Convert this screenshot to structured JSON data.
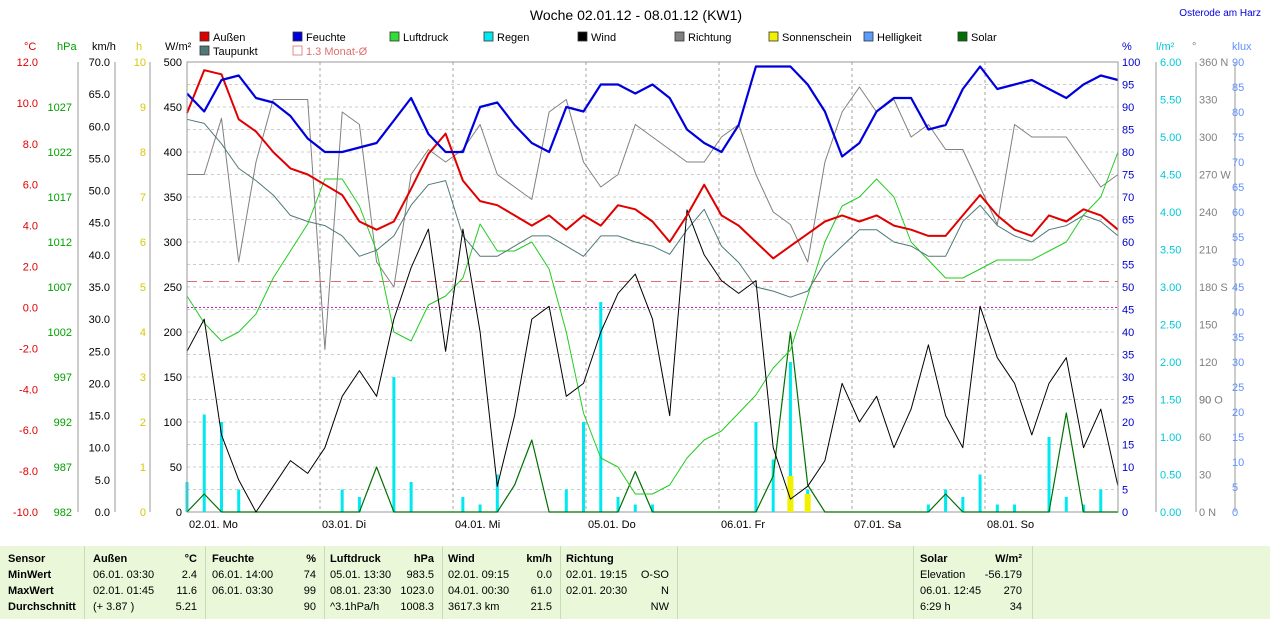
{
  "chart_data": {
    "type": "line",
    "title": "Woche 02.01.12 - 08.01.12 (KW1)",
    "location": "Osterode am Harz",
    "x_ticks": [
      "02.01. Mo",
      "03.01. Di",
      "04.01. Mi",
      "05.01. Do",
      "06.01. Fr",
      "07.01. Sa",
      "08.01. So"
    ],
    "axes": {
      "celsius": {
        "label": "°C",
        "ticks": [
          "12.0",
          "10.0",
          "8.0",
          "6.0",
          "4.0",
          "2.0",
          "0.0",
          "-2.0",
          "-4.0",
          "-6.0",
          "-8.0",
          "-10.0"
        ],
        "range": [
          -10,
          12
        ],
        "color": "#e00000"
      },
      "hpa": {
        "label": "hPa",
        "ticks": [
          "1027",
          "1022",
          "1017",
          "1012",
          "1007",
          "1002",
          "997",
          "992",
          "987",
          "982"
        ],
        "range": [
          982,
          1032
        ],
        "color": "#00a000"
      },
      "kmh": {
        "label": "km/h",
        "ticks": [
          "70.0",
          "65.0",
          "60.0",
          "55.0",
          "50.0",
          "45.0",
          "40.0",
          "35.0",
          "30.0",
          "25.0",
          "20.0",
          "15.0",
          "10.0",
          "5.0",
          "0.0"
        ],
        "range": [
          0,
          70
        ],
        "color": "#000000"
      },
      "hours": {
        "label": "h",
        "ticks": [
          "10",
          "9",
          "8",
          "7",
          "6",
          "5",
          "4",
          "3",
          "2",
          "1",
          "0"
        ],
        "range": [
          0,
          10
        ],
        "color": "#d8c800"
      },
      "wm2": {
        "label": "W/m²",
        "ticks": [
          "500",
          "450",
          "400",
          "350",
          "300",
          "250",
          "200",
          "150",
          "100",
          "50",
          "0"
        ],
        "range": [
          0,
          500
        ],
        "color": "#000000"
      },
      "percent": {
        "label": "%",
        "ticks": [
          "100",
          "95",
          "90",
          "85",
          "80",
          "75",
          "70",
          "65",
          "60",
          "55",
          "50",
          "45",
          "40",
          "35",
          "30",
          "25",
          "20",
          "15",
          "10",
          "5",
          "0"
        ],
        "range": [
          0,
          100
        ],
        "color": "#0000cc"
      },
      "lm2": {
        "label": "l/m²",
        "ticks": [
          "6.00",
          "5.50",
          "5.00",
          "4.50",
          "4.00",
          "3.50",
          "3.00",
          "2.50",
          "2.00",
          "1.50",
          "1.00",
          "0.50",
          "0.00"
        ],
        "range": [
          0,
          6
        ],
        "color": "#00c8d8"
      },
      "degree": {
        "label": "°",
        "ticks": [
          "360 N",
          "330",
          "300",
          "270 W",
          "240",
          "210",
          "180 S",
          "150",
          "120",
          "90",
          "60",
          "30",
          "0 N"
        ],
        "range": [
          0,
          360
        ],
        "color": "#808080"
      },
      "degree_o": "90 O",
      "klux": {
        "label": "klux",
        "ticks": [
          "90",
          "85",
          "80",
          "75",
          "70",
          "65",
          "60",
          "55",
          "50",
          "45",
          "40",
          "35",
          "30",
          "25",
          "20",
          "15",
          "10",
          "5",
          "0"
        ],
        "range": [
          0,
          90
        ],
        "color": "#6090ff"
      }
    },
    "legend": [
      {
        "label": "Außen",
        "color": "#e00000"
      },
      {
        "label": "Feuchte",
        "color": "#0000dd"
      },
      {
        "label": "Luftdruck",
        "color": "#33dd33"
      },
      {
        "label": "Regen",
        "color": "#00e8f0"
      },
      {
        "label": "Wind",
        "color": "#000000"
      },
      {
        "label": "Richtung",
        "color": "#808080"
      },
      {
        "label": "Sonnenschein",
        "color": "#f0f000"
      },
      {
        "label": "Helligkeit",
        "color": "#5a9cff"
      },
      {
        "label": "Solar",
        "color": "#007000"
      },
      {
        "label": "Taupunkt",
        "color": "#507878"
      },
      {
        "label": "1.3 Monat-Ø",
        "color": "#e07070"
      }
    ],
    "series": [
      {
        "name": "Außen",
        "unit": "°C",
        "values": [
          9.5,
          11.6,
          11.4,
          9.2,
          8.6,
          7.6,
          6.8,
          6.5,
          6.0,
          5.5,
          4.2,
          3.8,
          4.2,
          5.8,
          7.5,
          8.5,
          6.2,
          5.2,
          5.0,
          4.5,
          4.0,
          4.5,
          3.8,
          4.5,
          4.0,
          5.0,
          4.8,
          4.2,
          3.2,
          4.5,
          6.0,
          4.5,
          4.0,
          3.2,
          2.4,
          3.0,
          3.6,
          4.2,
          4.5,
          4.2,
          4.5,
          4.0,
          3.8,
          3.5,
          3.5,
          4.5,
          5.5,
          4.5,
          3.8,
          3.5,
          4.5,
          4.2,
          4.8,
          4.5,
          3.8
        ]
      },
      {
        "name": "Taupunkt",
        "unit": "°C",
        "values": [
          9.2,
          9.0,
          8.0,
          6.8,
          6.2,
          5.5,
          4.5,
          4.2,
          4.0,
          3.5,
          2.5,
          2.8,
          3.5,
          5.0,
          6.0,
          6.2,
          3.5,
          2.5,
          2.5,
          3.0,
          3.5,
          3.5,
          3.0,
          2.5,
          3.5,
          3.5,
          3.2,
          3.0,
          2.6,
          3.8,
          4.8,
          3.0,
          2.2,
          1.0,
          0.8,
          0.5,
          0.8,
          2.2,
          3.0,
          3.8,
          3.8,
          3.2,
          3.0,
          2.5,
          2.5,
          4.2,
          5.0,
          4.0,
          3.5,
          3.2,
          3.8,
          4.0,
          4.5,
          4.2,
          3.5
        ]
      },
      {
        "name": "Feuchte",
        "unit": "%",
        "values": [
          93,
          89,
          96,
          97,
          92,
          91,
          88,
          83,
          80,
          80,
          81,
          82,
          87,
          92,
          84,
          80,
          80,
          90,
          91,
          86,
          82,
          80,
          90,
          89,
          95,
          95,
          93,
          95,
          92,
          85,
          82,
          80,
          86,
          99,
          99,
          99,
          95,
          89,
          79,
          82,
          89,
          92,
          92,
          85,
          86,
          94,
          99,
          94,
          95,
          96,
          94,
          92,
          95,
          97,
          96
        ]
      },
      {
        "name": "Luftdruck",
        "unit": "hPa",
        "values": [
          1006,
          1003,
          1001,
          1002,
          1004,
          1008,
          1011,
          1014,
          1019,
          1019,
          1016,
          1011,
          1002,
          1001,
          1005,
          1006,
          1008,
          1014,
          1011,
          1011,
          1012,
          1009,
          1002,
          993,
          988,
          987,
          984,
          984,
          985,
          988,
          990,
          991,
          993,
          995,
          998,
          1000,
          1006,
          1012,
          1016,
          1017,
          1019,
          1017,
          1012,
          1010,
          1008,
          1008,
          1009,
          1010,
          1010,
          1010,
          1011,
          1012,
          1015,
          1017,
          1022
        ]
      },
      {
        "name": "Wind",
        "unit": "km/h",
        "values": [
          25,
          30,
          12,
          5,
          0,
          4,
          8,
          6,
          10,
          18,
          22,
          18,
          30,
          38,
          44,
          25,
          44,
          28,
          4,
          15,
          30,
          32,
          18,
          20,
          28,
          34,
          37,
          30,
          15,
          47,
          40,
          36,
          34,
          36,
          10,
          2,
          4,
          8,
          20,
          14,
          18,
          10,
          16,
          26,
          15,
          10,
          32,
          24,
          20,
          12,
          20,
          24,
          10,
          16,
          4
        ]
      },
      {
        "name": "Richtung",
        "unit": "°",
        "values": [
          270,
          270,
          315,
          200,
          280,
          330,
          330,
          330,
          130,
          320,
          310,
          200,
          180,
          270,
          290,
          280,
          290,
          310,
          270,
          260,
          250,
          320,
          330,
          280,
          260,
          270,
          310,
          300,
          290,
          280,
          280,
          300,
          310,
          270,
          240,
          230,
          200,
          280,
          320,
          340,
          320,
          330,
          300,
          310,
          290,
          290,
          260,
          230,
          310,
          300,
          300,
          300,
          280,
          260,
          270
        ]
      },
      {
        "name": "Regen",
        "unit": "l/m²",
        "values": [
          0.4,
          1.3,
          1.2,
          0.3,
          0,
          0,
          0,
          0,
          0,
          0.3,
          0.2,
          0,
          1.8,
          0.4,
          0,
          0,
          0.2,
          0.1,
          0.5,
          0,
          0,
          0,
          0.3,
          1.2,
          2.8,
          0.2,
          0.1,
          0.1,
          0,
          0,
          0,
          0,
          0,
          1.2,
          0.7,
          2.0,
          0.3,
          0,
          0,
          0,
          0,
          0,
          0,
          0.1,
          0.3,
          0.2,
          0.5,
          0.1,
          0.1,
          0,
          1.0,
          0.2,
          0.1,
          0.3,
          0
        ]
      },
      {
        "name": "Sonnenschein",
        "unit": "h",
        "values": [
          0,
          0,
          0,
          0,
          0,
          0,
          0,
          0,
          0,
          0,
          0,
          0,
          0,
          0,
          0,
          0,
          0,
          0,
          0,
          0,
          0,
          0,
          0,
          0,
          0,
          0,
          0,
          0,
          0,
          0,
          0,
          0,
          0,
          0,
          0,
          0.8,
          0.4,
          0,
          0,
          0,
          0,
          0,
          0,
          0,
          0,
          0,
          0,
          0,
          0,
          0,
          0,
          0,
          0,
          0,
          0
        ]
      },
      {
        "name": "Solar",
        "unit": "W/m²",
        "values": [
          0,
          20,
          0,
          0,
          0,
          0,
          0,
          0,
          0,
          0,
          0,
          50,
          0,
          0,
          0,
          0,
          0,
          0,
          0,
          30,
          80,
          0,
          0,
          0,
          0,
          0,
          45,
          0,
          0,
          0,
          0,
          0,
          0,
          0,
          40,
          200,
          30,
          0,
          0,
          0,
          0,
          0,
          0,
          0,
          20,
          0,
          0,
          0,
          0,
          0,
          0,
          110,
          0,
          0,
          0
        ]
      },
      {
        "name": "1.3 Monat-Ø",
        "unit": "°C",
        "values": [
          0.0
        ]
      }
    ]
  },
  "stats": {
    "sensor": {
      "title": "Sensor",
      "rows": [
        "MinWert",
        "MaxWert",
        "Durchschnitt"
      ]
    },
    "aussen": {
      "title": "Außen",
      "unit": "°C",
      "r1": {
        "time": "06.01.  03:30",
        "val": "2.4"
      },
      "r2": {
        "time": "02.01.  01:45",
        "val": "11.6"
      },
      "r3": {
        "time": "(+ 3.87 )",
        "val": "5.21"
      }
    },
    "feuchte": {
      "title": "Feuchte",
      "unit": "%",
      "r1": {
        "time": "06.01.  14:00",
        "val": "74"
      },
      "r2": {
        "time": "06.01.  03:30",
        "val": "99"
      },
      "r3": {
        "time": "",
        "val": "90"
      }
    },
    "luftdruck": {
      "title": "Luftdruck",
      "unit": "hPa",
      "r1": {
        "time": "05.01.  13:30",
        "val": "983.5"
      },
      "r2": {
        "time": "08.01.  23:30",
        "val": "1023.0"
      },
      "r3": {
        "time": "^3.1hPa/h",
        "val": "1008.3"
      }
    },
    "wind": {
      "title": "Wind",
      "unit": "km/h",
      "r1": {
        "time": "02.01.  09:15",
        "val": "0.0"
      },
      "r2": {
        "time": "04.01.  00:30",
        "val": "61.0"
      },
      "r3": {
        "time": "3617.3 km",
        "val": "21.5"
      }
    },
    "richtung": {
      "title": "Richtung",
      "r1": {
        "time": "02.01.  19:15",
        "val": "O-SO"
      },
      "r2": {
        "time": "02.01.  20:30",
        "val": "N"
      },
      "r3": {
        "time": "",
        "val": "NW"
      }
    },
    "solar": {
      "title": "Solar",
      "unit": "W/m²",
      "r1": {
        "time": "Elevation",
        "val": "-56.179"
      },
      "r2": {
        "time": "06.01.  12:45",
        "val": "270"
      },
      "r3": {
        "time": "6:29 h",
        "val": "34"
      }
    }
  }
}
